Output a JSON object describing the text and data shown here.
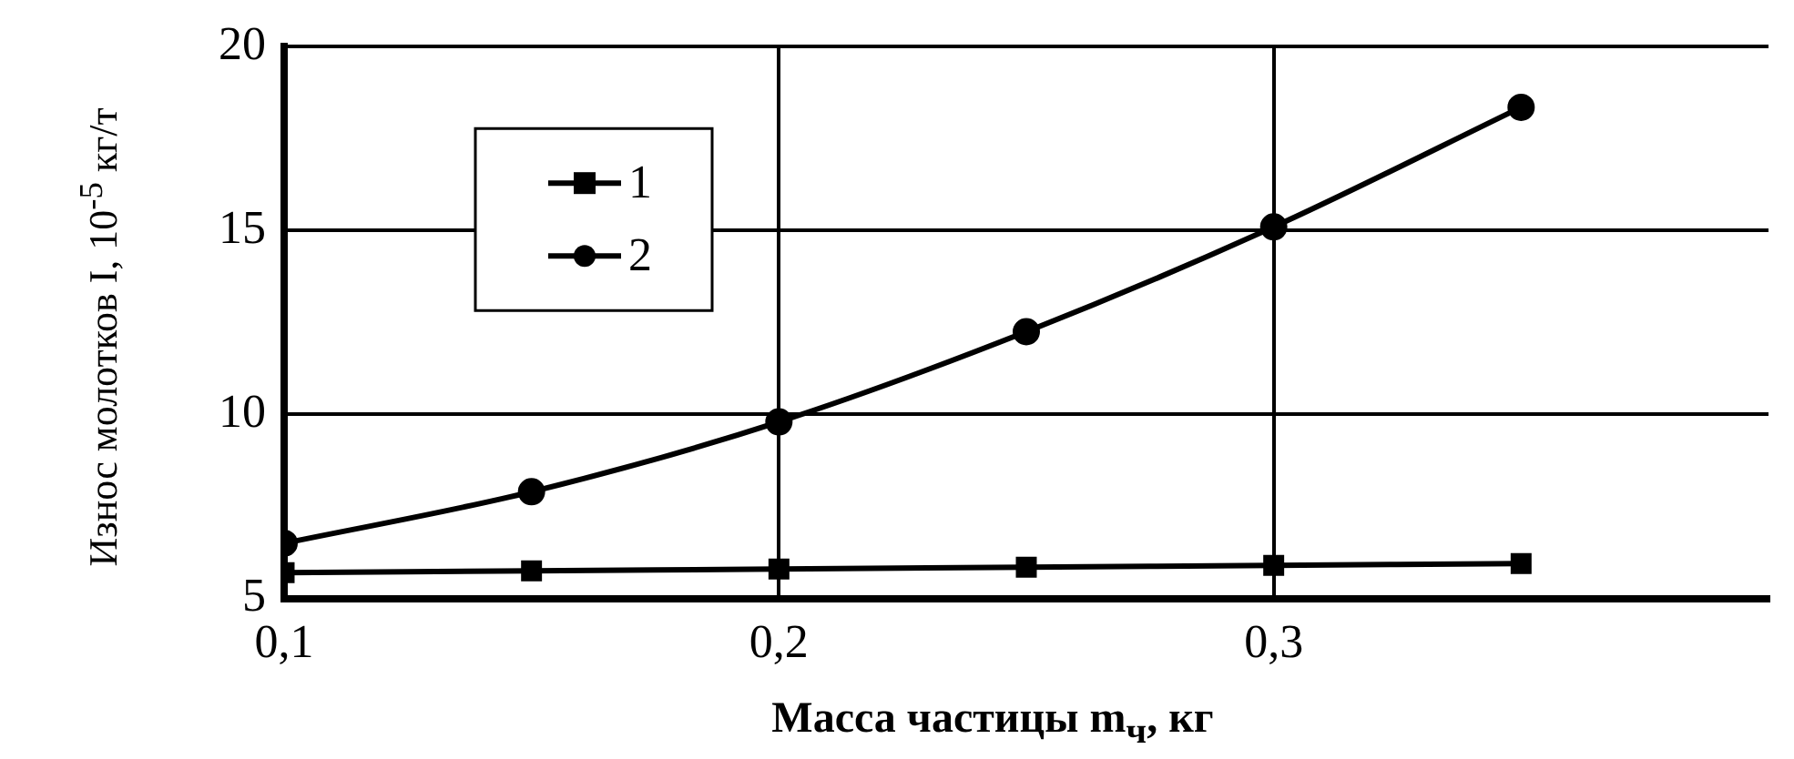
{
  "chart_data": {
    "type": "line",
    "xlabel": "Масса частицы m$_{ч}$, кг",
    "ylabel": "Износ молотков I, 10$^{-5}$ кг/т",
    "x": [
      0.1,
      0.15,
      0.2,
      0.25,
      0.3,
      0.35
    ],
    "series": [
      {
        "name": "1",
        "color": "#000000",
        "marker": "square",
        "values": [
          5.7,
          5.75,
          5.8,
          5.85,
          5.9,
          5.95
        ]
      },
      {
        "name": "2",
        "color": "#000000",
        "marker": "circle",
        "values": [
          6.5,
          7.9,
          9.8,
          12.25,
          15.1,
          18.35
        ]
      }
    ],
    "xlim": [
      0.1,
      0.4
    ],
    "xticks": [
      {
        "value": 0.1,
        "label": "0,1"
      },
      {
        "value": 0.2,
        "label": "0,2"
      },
      {
        "value": 0.3,
        "label": "0,3"
      }
    ],
    "ylim": [
      5,
      20
    ],
    "yticks": [
      5,
      10,
      15,
      20
    ],
    "grid": true,
    "legend": "top left"
  }
}
